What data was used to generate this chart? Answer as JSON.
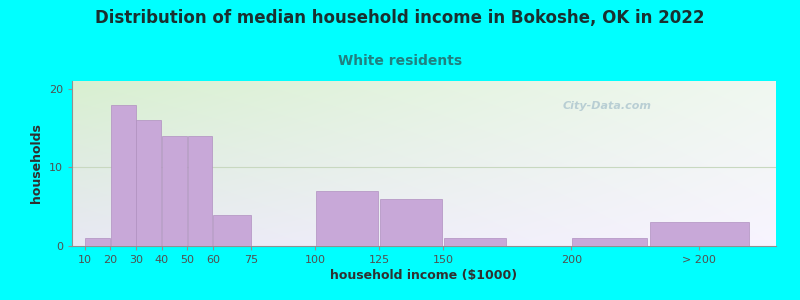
{
  "title": "Distribution of median household income in Bokoshe, OK in 2022",
  "subtitle": "White residents",
  "xlabel": "household income ($1000)",
  "ylabel": "households",
  "background_color": "#00FFFF",
  "plot_bg_color_topleft": "#d8f0d0",
  "plot_bg_color_bottomright": "#f0eaf8",
  "bar_color": "#c8a8d8",
  "bar_edgecolor": "#b090c0",
  "watermark": "City-Data.com",
  "values": [
    1,
    18,
    16,
    14,
    14,
    4,
    0,
    7,
    6,
    1,
    1,
    3
  ],
  "bar_lefts": [
    10,
    20,
    30,
    40,
    50,
    60,
    75,
    100,
    125,
    150,
    200,
    230
  ],
  "bar_widths": [
    10,
    10,
    10,
    10,
    10,
    15,
    25,
    25,
    25,
    25,
    30,
    40
  ],
  "ylim": [
    0,
    21
  ],
  "yticks": [
    0,
    10,
    20
  ],
  "xtick_labels": [
    "10",
    "20",
    "30",
    "40",
    "50",
    "60",
    "75",
    "100",
    "125",
    "150",
    "200",
    "> 200"
  ],
  "xtick_positions": [
    10,
    20,
    30,
    40,
    50,
    60,
    75,
    100,
    125,
    150,
    200,
    250
  ],
  "xlim": [
    5,
    280
  ],
  "title_fontsize": 12,
  "subtitle_fontsize": 10,
  "axis_label_fontsize": 9,
  "tick_fontsize": 8,
  "title_color": "#1a3030",
  "subtitle_color": "#208080",
  "axis_label_color": "#303030",
  "tick_color": "#505050",
  "gridline_color": "#c8d8c0",
  "watermark_color": "#b0c8d0"
}
